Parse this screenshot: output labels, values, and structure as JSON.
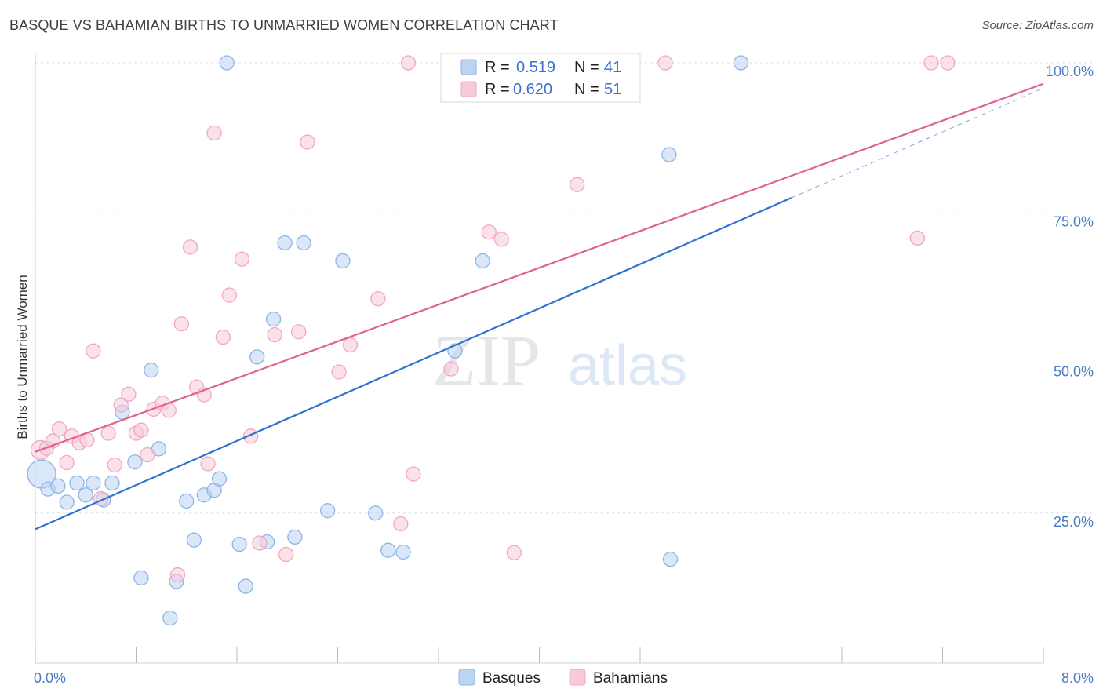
{
  "title": "BASQUE VS BAHAMIAN BIRTHS TO UNMARRIED WOMEN CORRELATION CHART",
  "source": "Source: ZipAtlas.com",
  "watermark": {
    "zip": "ZIP",
    "atlas": "atlas"
  },
  "legend": {
    "r_label": "R =",
    "n_label": "N =",
    "rows": [
      {
        "r": "0.519",
        "n": "41"
      },
      {
        "r": "0.620",
        "n": "51"
      }
    ]
  },
  "chart_data": {
    "type": "scatter",
    "title": "BASQUE VS BAHAMIAN BIRTHS TO UNMARRIED WOMEN CORRELATION CHART",
    "xlabel": "",
    "ylabel": "Births to Unmarried Women",
    "xlim": [
      0,
      8
    ],
    "ylim": [
      0,
      100
    ],
    "x_tick_labels": [
      "0.0%",
      "8.0%"
    ],
    "y_tick_labels": [
      "25.0%",
      "50.0%",
      "75.0%",
      "100.0%"
    ],
    "y_ticks": [
      25,
      50,
      75,
      100
    ],
    "grid": true,
    "legend_position": "bottom",
    "series": [
      {
        "name": "Basques",
        "color": "#8fb4e8",
        "fill": "#bcd4f3",
        "line_color": "#2e72d2",
        "trend": {
          "x0": 0,
          "y0": 22.3,
          "x1": 6.0,
          "y1": 77.5,
          "dash_to_x": 8.0,
          "dash_to_y": 95.8
        },
        "points": [
          [
            0.05,
            31.5,
            18
          ],
          [
            0.1,
            29,
            9
          ],
          [
            0.18,
            29.5,
            9
          ],
          [
            0.25,
            26.8,
            9
          ],
          [
            0.33,
            30,
            9
          ],
          [
            0.4,
            28,
            9
          ],
          [
            0.46,
            30,
            9
          ],
          [
            0.54,
            27.2,
            9
          ],
          [
            0.61,
            30,
            9
          ],
          [
            0.69,
            41.8,
            9
          ],
          [
            0.79,
            33.5,
            9
          ],
          [
            0.84,
            14.2,
            9
          ],
          [
            0.92,
            48.8,
            9
          ],
          [
            0.98,
            35.7,
            9
          ],
          [
            1.07,
            7.5,
            9
          ],
          [
            1.12,
            13.6,
            9
          ],
          [
            1.2,
            27,
            9
          ],
          [
            1.26,
            20.5,
            9
          ],
          [
            1.34,
            28,
            9
          ],
          [
            1.42,
            28.8,
            9
          ],
          [
            1.46,
            30.7,
            9
          ],
          [
            1.52,
            100,
            9
          ],
          [
            1.62,
            19.8,
            9
          ],
          [
            1.67,
            12.8,
            9
          ],
          [
            1.76,
            51,
            9
          ],
          [
            1.84,
            20.2,
            9
          ],
          [
            1.89,
            57.3,
            9
          ],
          [
            1.98,
            70,
            9
          ],
          [
            2.06,
            21,
            9
          ],
          [
            2.13,
            70,
            9
          ],
          [
            2.32,
            25.4,
            9
          ],
          [
            2.44,
            67,
            9
          ],
          [
            2.7,
            25,
            9
          ],
          [
            2.8,
            18.8,
            9
          ],
          [
            2.92,
            18.5,
            9
          ],
          [
            3.33,
            52,
            9
          ],
          [
            3.55,
            67,
            9
          ],
          [
            4.6,
            100,
            9
          ],
          [
            5.03,
            84.7,
            9
          ],
          [
            5.04,
            17.3,
            9
          ],
          [
            5.6,
            100,
            9
          ]
        ]
      },
      {
        "name": "Bahamians",
        "color": "#f2a7c0",
        "fill": "#f8cad9",
        "line_color": "#e0608f",
        "trend": {
          "x0": 0,
          "y0": 35.2,
          "x1": 8.0,
          "y1": 96.5
        },
        "points": [
          [
            0.04,
            35.5,
            12
          ],
          [
            0.09,
            35.8,
            9
          ],
          [
            0.14,
            37,
            9
          ],
          [
            0.19,
            39,
            9
          ],
          [
            0.25,
            33.4,
            9
          ],
          [
            0.29,
            37.8,
            9
          ],
          [
            0.35,
            36.7,
            9
          ],
          [
            0.41,
            37.2,
            9
          ],
          [
            0.46,
            52,
            9
          ],
          [
            0.52,
            27.4,
            9
          ],
          [
            0.58,
            38.3,
            9
          ],
          [
            0.63,
            33,
            9
          ],
          [
            0.68,
            43,
            9
          ],
          [
            0.74,
            44.8,
            9
          ],
          [
            0.8,
            38.3,
            9
          ],
          [
            0.84,
            38.8,
            9
          ],
          [
            0.89,
            34.7,
            9
          ],
          [
            0.94,
            42.3,
            9
          ],
          [
            1.01,
            43.3,
            9
          ],
          [
            1.06,
            42.1,
            9
          ],
          [
            1.13,
            14.7,
            9
          ],
          [
            1.16,
            56.5,
            9
          ],
          [
            1.23,
            69.3,
            9
          ],
          [
            1.28,
            46,
            9
          ],
          [
            1.34,
            44.7,
            9
          ],
          [
            1.37,
            33.2,
            9
          ],
          [
            1.42,
            88.3,
            9
          ],
          [
            1.49,
            54.3,
            9
          ],
          [
            1.54,
            61.3,
            9
          ],
          [
            1.64,
            67.3,
            9
          ],
          [
            1.71,
            37.8,
            9
          ],
          [
            1.78,
            20,
            9
          ],
          [
            1.9,
            54.7,
            9
          ],
          [
            1.99,
            18.1,
            9
          ],
          [
            2.09,
            55.2,
            9
          ],
          [
            2.16,
            86.8,
            9
          ],
          [
            2.41,
            48.5,
            9
          ],
          [
            2.5,
            53,
            9
          ],
          [
            2.72,
            60.7,
            9
          ],
          [
            2.9,
            23.2,
            9
          ],
          [
            2.96,
            100,
            9
          ],
          [
            3.0,
            31.5,
            9
          ],
          [
            3.3,
            49,
            9
          ],
          [
            3.6,
            71.8,
            9
          ],
          [
            3.7,
            70.6,
            9
          ],
          [
            3.8,
            18.4,
            9
          ],
          [
            4.3,
            79.7,
            9
          ],
          [
            5.0,
            100,
            9
          ],
          [
            7.0,
            70.8,
            9
          ],
          [
            7.11,
            100,
            9
          ],
          [
            7.24,
            100,
            9
          ]
        ]
      }
    ]
  }
}
